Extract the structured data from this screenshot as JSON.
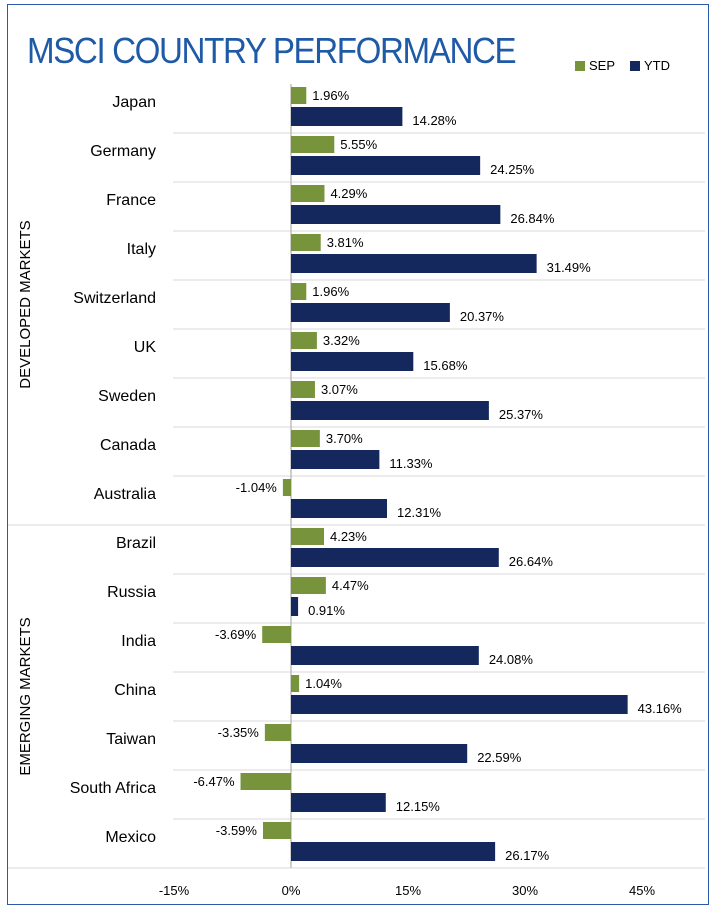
{
  "title": "MSCI COUNTRY PERFORMANCE",
  "legend": [
    {
      "name": "SEP",
      "color": "#77933c"
    },
    {
      "name": "YTD",
      "color": "#14285e"
    }
  ],
  "groups": [
    {
      "label": "DEVELOPED MARKETS",
      "start": 0,
      "count": 9
    },
    {
      "label": "EMERGING MARKETS",
      "start": 9,
      "count": 7
    }
  ],
  "chart_data": {
    "type": "bar",
    "orientation": "horizontal",
    "categories": [
      "Japan",
      "Germany",
      "France",
      "Italy",
      "Switzerland",
      "UK",
      "Sweden",
      "Canada",
      "Australia",
      "Brazil",
      "Russia",
      "India",
      "China",
      "Taiwan",
      "South Africa",
      "Mexico"
    ],
    "series": [
      {
        "name": "SEP",
        "values": [
          1.96,
          5.55,
          4.29,
          3.81,
          1.96,
          3.32,
          3.07,
          3.7,
          -1.04,
          4.23,
          4.47,
          -3.69,
          1.04,
          -3.35,
          -6.47,
          -3.59
        ]
      },
      {
        "name": "YTD",
        "values": [
          14.28,
          24.25,
          26.84,
          31.49,
          20.37,
          15.68,
          25.37,
          11.33,
          12.31,
          26.64,
          0.91,
          24.08,
          43.16,
          22.59,
          12.15,
          26.17
        ]
      }
    ],
    "data_labels": {
      "SEP": [
        "1.96%",
        "5.55%",
        "4.29%",
        "3.81%",
        "1.96%",
        "3.32%",
        "3.07%",
        "3.70%",
        "-1.04%",
        "4.23%",
        "4.47%",
        "-3.69%",
        "1.04%",
        "-3.35%",
        "-6.47%",
        "-3.59%"
      ],
      "YTD": [
        "14.28%",
        "24.25%",
        "26.84%",
        "31.49%",
        "20.37%",
        "15.68%",
        "25.37%",
        "11.33%",
        "12.31%",
        "26.64%",
        "0.91%",
        "24.08%",
        "43.16%",
        "22.59%",
        "12.15%",
        "26.17%"
      ]
    },
    "xlim": [
      -15,
      45
    ],
    "xticks": [
      -15,
      0,
      15,
      30,
      45
    ],
    "xtick_labels": [
      "-15%",
      "0%",
      "15%",
      "30%",
      "45%"
    ],
    "grid": "horizontal separators between categories",
    "legend_position": "top-right"
  }
}
